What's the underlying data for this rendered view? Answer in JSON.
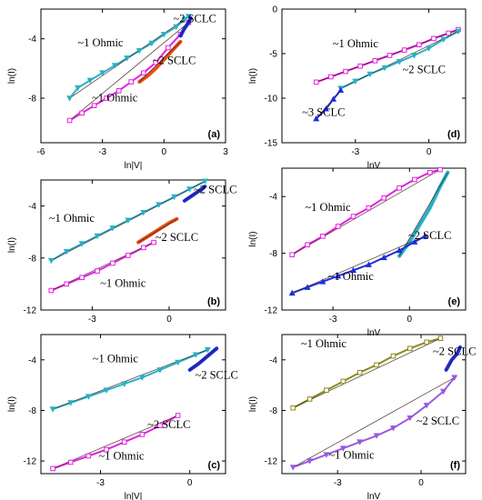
{
  "chart_data": [
    {
      "panel_label": "(a)",
      "type": "line",
      "xlabel": "ln|V|",
      "ylabel": "ln(I)",
      "xlim": [
        -6,
        3
      ],
      "ylim": [
        -11,
        -2
      ],
      "xticks": [
        -6,
        -3,
        0,
        3
      ],
      "yticks": [
        -4,
        -8
      ],
      "annotations": [
        {
          "text": "~1 Ohmic",
          "x": -3.1,
          "y": -4.5
        },
        {
          "text": "~2 SCLC",
          "x": 1.5,
          "y": -2.9
        },
        {
          "text": "~2 SCLC",
          "x": 0.5,
          "y": -5.7
        },
        {
          "text": "~1 Ohmic",
          "x": -2.4,
          "y": -8.2
        }
      ],
      "series": [
        {
          "color": "#2ab0c4",
          "marker": "triangle-down",
          "x": [
            -4.6,
            -4.2,
            -3.6,
            -3.0,
            -2.4,
            -1.8,
            -1.2,
            -0.6,
            0.0,
            0.6,
            1.0,
            1.2
          ],
          "y": [
            -8.0,
            -7.3,
            -6.8,
            -6.3,
            -5.8,
            -5.3,
            -4.8,
            -4.3,
            -3.7,
            -3.2,
            -2.7,
            -2.5
          ]
        },
        {
          "color": "#e020e0",
          "marker": "square",
          "x": [
            -4.6,
            -4.0,
            -3.4,
            -2.8,
            -2.2,
            -1.6,
            -1.0,
            -0.4,
            0.2,
            0.8,
            1.2
          ],
          "y": [
            -9.5,
            -9.0,
            -8.5,
            -8.0,
            -7.5,
            -6.9,
            -6.3,
            -5.6,
            -4.6,
            -3.7,
            -2.9
          ]
        },
        {
          "color": "#e8501a",
          "marker": "none",
          "x": [
            -1.2,
            -0.8,
            -0.4,
            0.0,
            0.4,
            0.8
          ],
          "y": [
            -6.9,
            -6.5,
            -6.0,
            -5.4,
            -4.8,
            -4.2
          ]
        },
        {
          "color": "#1a2ee0",
          "marker": "none",
          "x": [
            0.8,
            1.0,
            1.2,
            1.3
          ],
          "y": [
            -3.8,
            -3.3,
            -2.9,
            -2.6
          ]
        }
      ]
    },
    {
      "panel_label": "(d)",
      "type": "line",
      "xlabel": "lnV",
      "ylabel": "ln(I)",
      "xlim": [
        -6,
        1.5
      ],
      "ylim": [
        -15,
        0
      ],
      "xticks": [
        -3,
        0
      ],
      "yticks": [
        0,
        -5,
        -10,
        -15
      ],
      "annotations": [
        {
          "text": "~1 Ohmic",
          "x": -3.0,
          "y": -4.3
        },
        {
          "text": "~2 SCLC",
          "x": -0.2,
          "y": -7.2
        },
        {
          "text": "~3 SCLC",
          "x": -4.3,
          "y": -12.0
        }
      ],
      "series": [
        {
          "color": "#e020e0",
          "marker": "square",
          "x": [
            -4.6,
            -4.0,
            -3.4,
            -2.8,
            -2.2,
            -1.6,
            -1.0,
            -0.4,
            0.2,
            0.8,
            1.2
          ],
          "y": [
            -8.2,
            -7.6,
            -7.0,
            -6.4,
            -5.8,
            -5.2,
            -4.6,
            -4.0,
            -3.3,
            -2.7,
            -2.3
          ]
        },
        {
          "color": "#2ab0c4",
          "marker": "triangle-down",
          "x": [
            -3.6,
            -3.0,
            -2.4,
            -1.8,
            -1.2,
            -0.6,
            0.0,
            0.6,
            1.2
          ],
          "y": [
            -8.9,
            -8.1,
            -7.3,
            -6.6,
            -5.9,
            -5.2,
            -4.4,
            -3.4,
            -2.5
          ]
        },
        {
          "color": "#1a2ee0",
          "marker": "triangle-up",
          "x": [
            -4.6,
            -4.2,
            -3.9,
            -3.6
          ],
          "y": [
            -12.3,
            -11.2,
            -10.1,
            -9.1
          ]
        }
      ]
    },
    {
      "panel_label": "(b)",
      "type": "line",
      "xlabel": "",
      "ylabel": "ln(I)",
      "xlim": [
        -5,
        2.2
      ],
      "ylim": [
        -12,
        -2
      ],
      "xticks": [
        -3,
        0
      ],
      "yticks": [
        -4,
        -8,
        -12
      ],
      "annotations": [
        {
          "text": "~1 Ohmic",
          "x": -3.8,
          "y": -5.2
        },
        {
          "text": "~2 SCLC",
          "x": 1.8,
          "y": -3.0
        },
        {
          "text": "~2 SCLC",
          "x": 0.3,
          "y": -6.7
        },
        {
          "text": "~1 Ohmic",
          "x": -1.8,
          "y": -10.2
        }
      ],
      "series": [
        {
          "color": "#2ab0c4",
          "marker": "triangle-down",
          "x": [
            -4.6,
            -4.0,
            -3.4,
            -2.8,
            -2.2,
            -1.6,
            -1.0,
            -0.4,
            0.2,
            0.8,
            1.4
          ],
          "y": [
            -8.2,
            -7.5,
            -6.9,
            -6.3,
            -5.7,
            -5.1,
            -4.5,
            -3.9,
            -3.3,
            -2.7,
            -2.1
          ]
        },
        {
          "color": "#e020e0",
          "marker": "square",
          "x": [
            -4.6,
            -4.0,
            -3.4,
            -2.8,
            -2.2,
            -1.6,
            -1.0,
            -0.6
          ],
          "y": [
            -10.5,
            -10.0,
            -9.5,
            -9.0,
            -8.4,
            -7.8,
            -7.2,
            -6.8
          ]
        },
        {
          "color": "#e8501a",
          "marker": "none",
          "x": [
            -1.2,
            -0.8,
            -0.4,
            0.0,
            0.3
          ],
          "y": [
            -6.8,
            -6.3,
            -5.8,
            -5.3,
            -5.0
          ]
        },
        {
          "color": "#1a2ee0",
          "marker": "none",
          "x": [
            0.6,
            0.9,
            1.2,
            1.4
          ],
          "y": [
            -3.6,
            -3.2,
            -2.8,
            -2.5
          ]
        }
      ]
    },
    {
      "panel_label": "(e)",
      "type": "line",
      "xlabel": "lnV",
      "ylabel": "ln(I)",
      "xlim": [
        -5,
        2.2
      ],
      "ylim": [
        -12,
        -2
      ],
      "xticks": [
        -3,
        0
      ],
      "yticks": [
        -4,
        -8,
        -12
      ],
      "annotations": [
        {
          "text": "~1 Ohmic",
          "x": -3.2,
          "y": -5.0
        },
        {
          "text": "~2 SCLC",
          "x": 0.8,
          "y": -7.0
        },
        {
          "text": "~1 Ohmic",
          "x": -2.3,
          "y": -9.9
        }
      ],
      "series": [
        {
          "color": "#e020e0",
          "marker": "square",
          "x": [
            -4.6,
            -4.0,
            -3.4,
            -2.8,
            -2.2,
            -1.6,
            -1.0,
            -0.4,
            0.2,
            0.8,
            1.2
          ],
          "y": [
            -8.1,
            -7.4,
            -6.8,
            -6.1,
            -5.4,
            -4.8,
            -4.1,
            -3.4,
            -2.8,
            -2.3,
            -2.1
          ]
        },
        {
          "color": "#2ab0c4",
          "marker": "none",
          "x": [
            -0.4,
            0.0,
            0.4,
            0.8,
            1.2,
            1.5
          ],
          "y": [
            -8.2,
            -7.2,
            -6.0,
            -4.8,
            -3.3,
            -2.3
          ]
        },
        {
          "color": "#1a2ee0",
          "marker": "triangle-up",
          "x": [
            -4.6,
            -4.0,
            -3.4,
            -2.8,
            -2.2,
            -1.6,
            -1.0,
            -0.4,
            0.2,
            0.6
          ],
          "y": [
            -10.8,
            -10.4,
            -10.0,
            -9.6,
            -9.2,
            -8.8,
            -8.3,
            -7.8,
            -7.2,
            -6.8
          ]
        }
      ]
    },
    {
      "panel_label": "(c)",
      "type": "line",
      "xlabel": "ln|V|",
      "ylabel": "ln(I)",
      "xlim": [
        -5,
        1.2
      ],
      "ylim": [
        -13,
        -2
      ],
      "xticks": [
        -3,
        0
      ],
      "yticks": [
        -4,
        -8,
        -12
      ],
      "annotations": [
        {
          "text": "~1 Ohmic",
          "x": -2.5,
          "y": -4.2
        },
        {
          "text": "~2 SCLC",
          "x": 0.9,
          "y": -5.5
        },
        {
          "text": "~2 SCLC",
          "x": -0.7,
          "y": -9.4
        },
        {
          "text": "~1 Ohmic",
          "x": -2.3,
          "y": -11.9
        }
      ],
      "series": [
        {
          "color": "#2ab0c4",
          "marker": "triangle-down",
          "x": [
            -4.6,
            -4.0,
            -3.4,
            -2.8,
            -2.2,
            -1.6,
            -1.0,
            -0.4,
            0.2,
            0.6
          ],
          "y": [
            -7.9,
            -7.4,
            -6.9,
            -6.4,
            -5.9,
            -5.4,
            -4.8,
            -4.2,
            -3.6,
            -3.2
          ]
        },
        {
          "color": "#e020e0",
          "marker": "square",
          "x": [
            -4.6,
            -4.0,
            -3.4,
            -2.8,
            -2.2,
            -1.6,
            -1.0,
            -0.4
          ],
          "y": [
            -12.6,
            -12.1,
            -11.6,
            -11.1,
            -10.5,
            -9.9,
            -9.2,
            -8.4
          ]
        },
        {
          "color": "#1a2ee0",
          "marker": "none",
          "x": [
            0.0,
            0.3,
            0.6,
            0.9
          ],
          "y": [
            -4.8,
            -4.3,
            -3.7,
            -3.1
          ]
        }
      ]
    },
    {
      "panel_label": "(f)",
      "type": "line",
      "xlabel": "lnV",
      "ylabel": "ln(I)",
      "xlim": [
        -5,
        1.6
      ],
      "ylim": [
        -13,
        -2
      ],
      "xticks": [
        -3,
        0
      ],
      "yticks": [
        -4,
        -8,
        -12
      ],
      "annotations": [
        {
          "text": "~1 Ohmic",
          "x": -3.5,
          "y": -3.0
        },
        {
          "text": "~2 SCLC",
          "x": 1.2,
          "y": -3.6
        },
        {
          "text": "~2 SCLC",
          "x": 0.6,
          "y": -9.1
        },
        {
          "text": "~1 Ohmic",
          "x": -2.5,
          "y": -11.8
        }
      ],
      "series": [
        {
          "color": "#8a8a1a",
          "marker": "square",
          "x": [
            -4.6,
            -4.0,
            -3.4,
            -2.8,
            -2.2,
            -1.6,
            -1.0,
            -0.4,
            0.2,
            0.7
          ],
          "y": [
            -7.8,
            -7.1,
            -6.4,
            -5.7,
            -5.0,
            -4.4,
            -3.7,
            -3.1,
            -2.6,
            -2.3
          ]
        },
        {
          "color": "#9a5adf",
          "marker": "triangle-down",
          "x": [
            -4.6,
            -4.0,
            -3.4,
            -2.8,
            -2.2,
            -1.6,
            -1.0,
            -0.4,
            0.2,
            0.8,
            1.2
          ],
          "y": [
            -12.5,
            -12.0,
            -11.5,
            -11.0,
            -10.5,
            -10.0,
            -9.4,
            -8.6,
            -7.6,
            -6.5,
            -5.4
          ]
        },
        {
          "color": "#2030e0",
          "marker": "none",
          "x": [
            0.9,
            1.1,
            1.3,
            1.4
          ],
          "y": [
            -4.8,
            -4.0,
            -3.5,
            -3.0
          ]
        }
      ]
    }
  ]
}
